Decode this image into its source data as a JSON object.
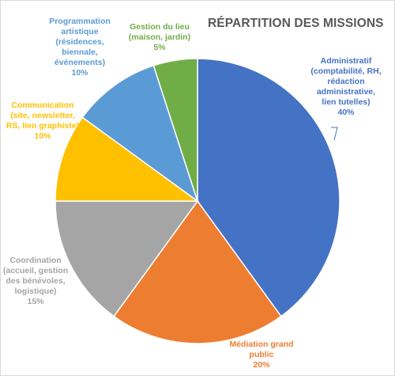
{
  "chart_data": {
    "type": "pie",
    "title": "RÉPARTITION DES MISSIONS",
    "slices": [
      {
        "name": "Administratif",
        "detail": [
          "(comptabilité, RH,",
          "rédaction",
          "administrative,",
          "lien tutelles)"
        ],
        "value": 40,
        "value_label": "40%",
        "color": "#4472c4"
      },
      {
        "name": "Médiation grand",
        "detail": [
          "public"
        ],
        "value": 20,
        "value_label": "20%",
        "color": "#ed7d31"
      },
      {
        "name": "Coordination",
        "detail": [
          "(accueil, gestion",
          "des bénévoles,",
          "logistique)"
        ],
        "value": 15,
        "value_label": "15%",
        "color": "#a5a5a5"
      },
      {
        "name": "Communication",
        "detail": [
          "(site, newsletter,",
          "RS, lien graphiste)"
        ],
        "value": 10,
        "value_label": "10%",
        "color": "#ffc000"
      },
      {
        "name": "Programmation",
        "detail": [
          "artistique",
          "(résidences,",
          "biennale,",
          "événements)"
        ],
        "value": 10,
        "value_label": "10%",
        "color": "#5b9bd5"
      },
      {
        "name": "Gestion du lieu",
        "detail": [
          "(maison, jardin)"
        ],
        "value": 5,
        "value_label": "5%",
        "color": "#70ad47"
      }
    ]
  }
}
